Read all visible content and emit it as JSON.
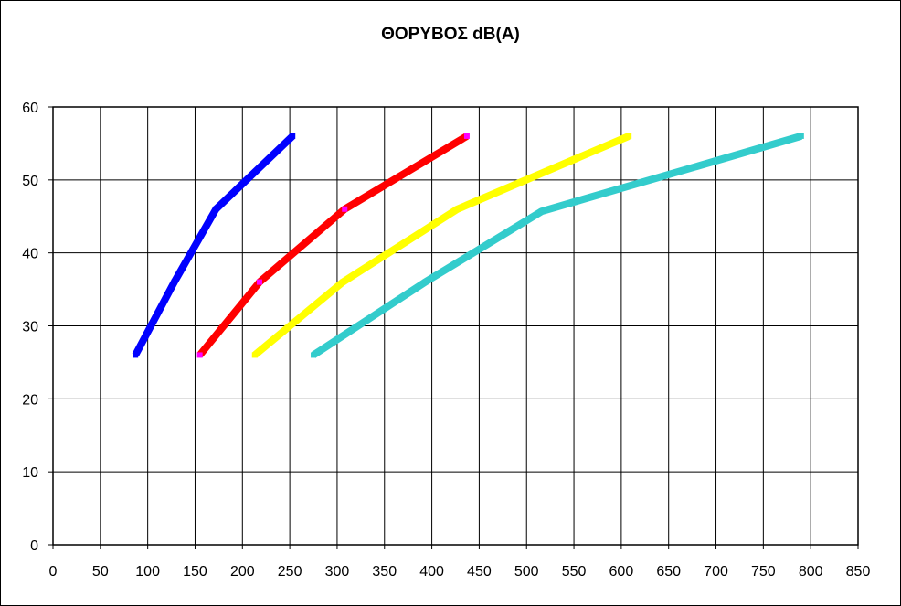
{
  "chart_data": {
    "type": "line",
    "title": "ΘΟΡΥΒΟΣ dB(A)",
    "xlabel": "",
    "ylabel": "",
    "xlim": [
      0,
      850
    ],
    "ylim": [
      0,
      60
    ],
    "xticks": [
      0,
      50,
      100,
      150,
      200,
      250,
      300,
      350,
      400,
      450,
      500,
      550,
      600,
      650,
      700,
      750,
      800,
      850
    ],
    "yticks": [
      0,
      10,
      20,
      30,
      40,
      50,
      60
    ],
    "grid": true,
    "legend": "none",
    "series": [
      {
        "color": "#0000ff",
        "marker_color": "#0000ff",
        "points": [
          [
            87,
            26
          ],
          [
            128,
            36
          ],
          [
            172,
            46
          ],
          [
            253,
            56
          ]
        ]
      },
      {
        "color": "#ff0000",
        "marker_color": "#ff00ff",
        "points": [
          [
            155,
            26
          ],
          [
            218,
            36
          ],
          [
            308,
            46
          ],
          [
            437,
            56
          ]
        ]
      },
      {
        "color": "#ffff00",
        "marker_color": "#ffff00",
        "points": [
          [
            213,
            26
          ],
          [
            306,
            36
          ],
          [
            427,
            46
          ],
          [
            608,
            56
          ]
        ]
      },
      {
        "color": "#33cccc",
        "marker_color": "#33cccc",
        "points": [
          [
            275,
            26
          ],
          [
            393,
            36
          ],
          [
            516,
            45.7
          ],
          [
            790,
            56
          ]
        ]
      }
    ]
  }
}
